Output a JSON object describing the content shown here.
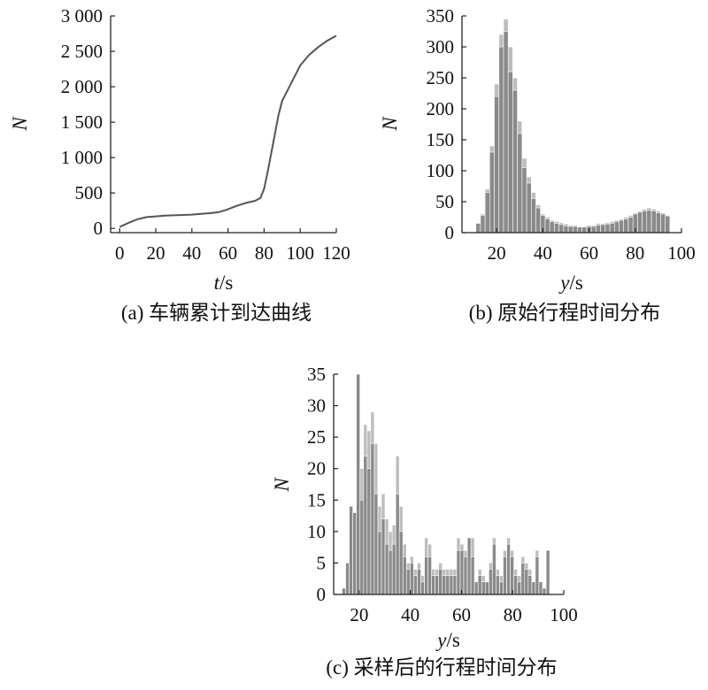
{
  "figure": {
    "captions": [
      "(a) 车辆累计到达曲线",
      "(b) 原始行程时间分布",
      "(c) 采样后的行程时间分布"
    ]
  },
  "colors": {
    "axis": "#222222",
    "line": "#555555",
    "bar_light": "#bdbdbd",
    "bar_dark": "#8a8a8a",
    "bar_stroke": "#ffffff"
  },
  "chart_data": [
    {
      "type": "line",
      "caption": "(a) 车辆累计到达曲线",
      "xlabel_var": "t",
      "xlabel_unit": "/s",
      "ylabel": "N",
      "xlim": [
        -5,
        120
      ],
      "ylim": [
        -60,
        3000
      ],
      "xticks": [
        0,
        20,
        40,
        60,
        80,
        100,
        120
      ],
      "xtick_labels": [
        "0",
        "20",
        "40",
        "60",
        "80",
        "100",
        "120"
      ],
      "yticks": [
        0,
        500,
        1000,
        1500,
        2000,
        2500,
        3000
      ],
      "ytick_labels": [
        "0",
        "500",
        "1 000",
        "1 500",
        "2 000",
        "2 500",
        "3 000"
      ],
      "x": [
        0,
        5,
        10,
        15,
        20,
        25,
        30,
        35,
        40,
        45,
        50,
        55,
        60,
        65,
        70,
        75,
        78,
        80,
        82,
        85,
        88,
        90,
        95,
        100,
        105,
        110,
        115,
        120
      ],
      "y": [
        20,
        80,
        130,
        160,
        170,
        180,
        185,
        190,
        195,
        205,
        215,
        230,
        270,
        320,
        360,
        390,
        430,
        560,
        800,
        1200,
        1600,
        1800,
        2050,
        2300,
        2450,
        2560,
        2650,
        2720
      ]
    },
    {
      "type": "bar",
      "caption": "(b) 原始行程时间分布",
      "xlabel_var": "y",
      "xlabel_unit": "/s",
      "ylabel": "N",
      "xlim": [
        5,
        100
      ],
      "ylim": [
        0,
        350
      ],
      "xticks": [
        20,
        40,
        60,
        80,
        100
      ],
      "yticks": [
        0,
        50,
        100,
        150,
        200,
        250,
        300,
        350
      ],
      "bin_width": 2,
      "x": [
        12,
        14,
        16,
        18,
        20,
        22,
        24,
        26,
        28,
        30,
        32,
        34,
        36,
        38,
        40,
        42,
        44,
        46,
        48,
        50,
        52,
        54,
        56,
        58,
        60,
        62,
        64,
        66,
        68,
        70,
        72,
        74,
        76,
        78,
        80,
        82,
        84,
        86,
        88,
        90,
        92,
        94
      ],
      "series": [
        {
          "name": "",
          "values": [
            15,
            30,
            70,
            140,
            240,
            320,
            345,
            300,
            250,
            180,
            120,
            90,
            65,
            45,
            30,
            25,
            20,
            18,
            16,
            14,
            12,
            12,
            10,
            10,
            12,
            12,
            15,
            15,
            16,
            18,
            20,
            22,
            25,
            28,
            32,
            35,
            38,
            40,
            38,
            35,
            32,
            28
          ]
        },
        {
          "name": "",
          "values": [
            15,
            28,
            65,
            130,
            220,
            300,
            325,
            260,
            230,
            160,
            105,
            80,
            55,
            40,
            28,
            22,
            18,
            15,
            13,
            11,
            10,
            10,
            9,
            9,
            10,
            10,
            12,
            13,
            14,
            15,
            18,
            20,
            22,
            25,
            30,
            33,
            35,
            36,
            35,
            32,
            30,
            27
          ]
        }
      ]
    },
    {
      "type": "bar",
      "caption": "(c) 采样后的行程时间分布",
      "xlabel_var": "y",
      "xlabel_unit": "/s",
      "ylabel": "N",
      "xlim": [
        10,
        100
      ],
      "ylim": [
        0,
        35
      ],
      "xticks": [
        20,
        40,
        60,
        80,
        100
      ],
      "yticks": [
        0,
        5,
        10,
        15,
        20,
        25,
        30,
        35
      ],
      "bin_width": 1.4,
      "x": [
        14,
        15.4,
        16.8,
        18.2,
        19.6,
        21,
        22.4,
        23.8,
        25.2,
        26.6,
        28,
        29.4,
        30.8,
        32.2,
        33.6,
        35,
        36.4,
        37.8,
        39.2,
        40.6,
        42,
        43.4,
        44.8,
        46.2,
        47.6,
        49,
        50.4,
        51.8,
        53.2,
        54.6,
        56,
        57.4,
        58.8,
        60.2,
        61.6,
        63,
        64.4,
        65.8,
        67.2,
        68.6,
        70,
        71.4,
        72.8,
        74.2,
        75.6,
        77,
        78.4,
        79.8,
        81.2,
        82.6,
        84,
        85.4,
        86.8,
        88.2,
        89.6,
        91,
        92.4,
        93.8
      ],
      "series": [
        {
          "name": "",
          "values": [
            1,
            5,
            14,
            13,
            35,
            20,
            27,
            26,
            29,
            24,
            14,
            16,
            12,
            10,
            11,
            22,
            14,
            8,
            5,
            6,
            4,
            5,
            3,
            9,
            8,
            4,
            4,
            5,
            4,
            4,
            4,
            4,
            9,
            8,
            7,
            9,
            9,
            2,
            4,
            3,
            2,
            5,
            9,
            4,
            3,
            7,
            9,
            7,
            4,
            3,
            6,
            5,
            4,
            2,
            7,
            2,
            1,
            7
          ]
        },
        {
          "name": "",
          "values": [
            1,
            5,
            14,
            13,
            35,
            15,
            22,
            20,
            24,
            16,
            10,
            12,
            8,
            7,
            8,
            16,
            10,
            6,
            4,
            5,
            3,
            4,
            2,
            6,
            6,
            3,
            3,
            4,
            3,
            3,
            3,
            3,
            7,
            7,
            6,
            9,
            6,
            2,
            3,
            2,
            2,
            4,
            8,
            3,
            2,
            6,
            8,
            6,
            3,
            2,
            5,
            4,
            3,
            2,
            6,
            2,
            1,
            7
          ]
        }
      ]
    }
  ]
}
